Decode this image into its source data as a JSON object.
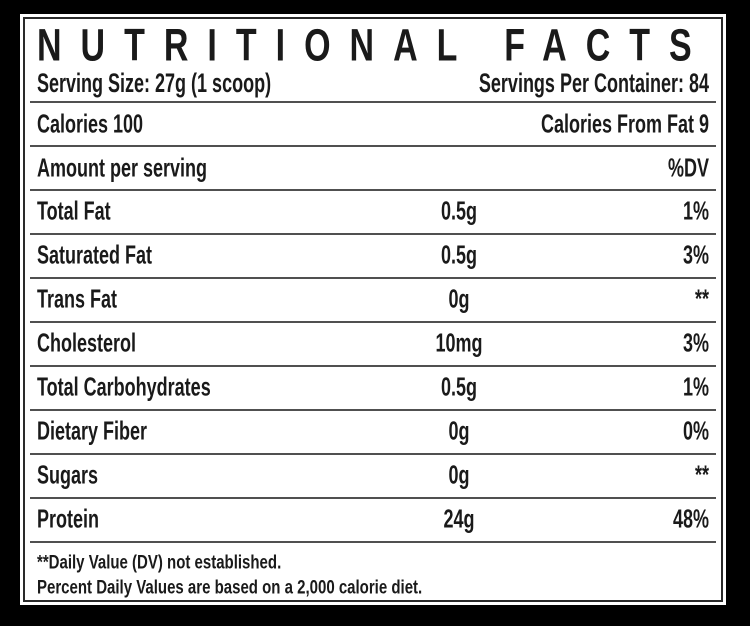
{
  "label": {
    "title": "NUTRITIONAL FACTS",
    "serving_size": "Serving Size: 27g (1 scoop)",
    "servings_per_container": "Servings Per Container: 84",
    "calories": {
      "left": "Calories 100",
      "right": "Calories From Fat 9"
    },
    "columns": {
      "left": "Amount per serving",
      "right": "%DV"
    },
    "rows": [
      {
        "name": "Total Fat",
        "amount": "0.5g",
        "dv": "1%"
      },
      {
        "name": "Saturated Fat",
        "amount": "0.5g",
        "dv": "3%"
      },
      {
        "name": "Trans Fat",
        "amount": "0g",
        "dv": "**"
      },
      {
        "name": "Cholesterol",
        "amount": "10mg",
        "dv": "3%"
      },
      {
        "name": "Total Carbohydrates",
        "amount": "0.5g",
        "dv": "1%"
      },
      {
        "name": "Dietary Fiber",
        "amount": "0g",
        "dv": "0%"
      },
      {
        "name": "Sugars",
        "amount": "0g",
        "dv": "**"
      },
      {
        "name": "Protein",
        "amount": "24g",
        "dv": "48%"
      }
    ],
    "footnotes": [
      "**Daily Value (DV) not established.",
      "Percent Daily Values are based on a 2,000 calorie diet."
    ],
    "colors": {
      "background": "#000000",
      "panel": "#ffffff",
      "text": "#1a1a1a",
      "divider": "#505050",
      "border": "#2a2a2a"
    }
  }
}
